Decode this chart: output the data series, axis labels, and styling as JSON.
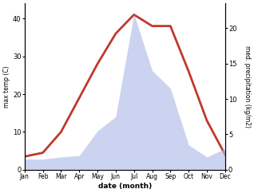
{
  "months": [
    "Jan",
    "Feb",
    "Mar",
    "Apr",
    "May",
    "Jun",
    "Jul",
    "Aug",
    "Sep",
    "Oct",
    "Nov",
    "Dec"
  ],
  "month_positions": [
    1,
    2,
    3,
    4,
    5,
    6,
    7,
    8,
    9,
    10,
    11,
    12
  ],
  "temperature": [
    3.5,
    4.5,
    10.0,
    19.0,
    28.0,
    36.0,
    41.0,
    38.0,
    38.0,
    26.0,
    13.0,
    4.0
  ],
  "precipitation": [
    1.5,
    1.5,
    1.8,
    2.0,
    5.5,
    7.5,
    22.0,
    14.0,
    11.5,
    3.5,
    1.8,
    3.0
  ],
  "temp_color": "#c0392b",
  "precip_color_fill": "#b0bce8",
  "temp_ylim": [
    0,
    44
  ],
  "precip_ylim": [
    0,
    23.5
  ],
  "temp_yticks": [
    0,
    10,
    20,
    30,
    40
  ],
  "precip_yticks": [
    0,
    5,
    10,
    15,
    20
  ],
  "ylabel_left": "max temp (C)",
  "ylabel_right": "med. precipitation (kg/m2)",
  "xlabel": "date (month)",
  "background_color": "#ffffff",
  "line_width": 2.0,
  "fill_alpha": 0.65,
  "figwidth": 3.18,
  "figheight": 2.42,
  "dpi": 100
}
